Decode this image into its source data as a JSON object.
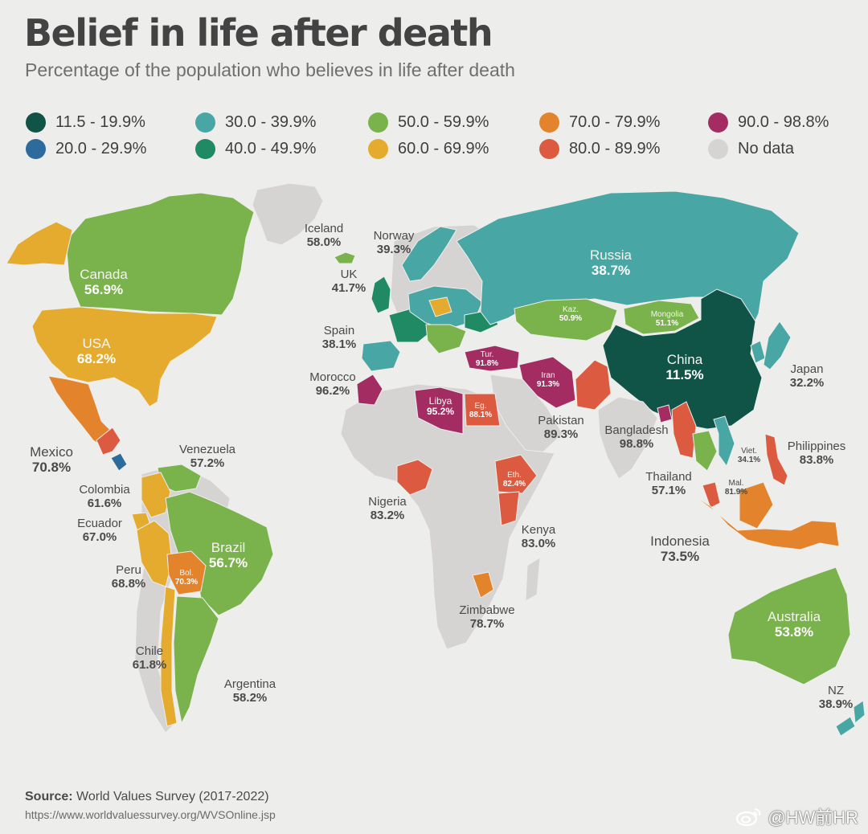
{
  "title": "Belief in life after death",
  "subtitle": "Percentage of the population who believes in life after death",
  "colors": {
    "b1": "#0f5447",
    "b2": "#2c6b9c",
    "b3": "#48a7a5",
    "b4": "#1f8a64",
    "b5": "#7ab24b",
    "b6": "#e5ab2f",
    "b7": "#e3832c",
    "b8": "#dc5a3f",
    "b9": "#a32d63",
    "nodata": "#d6d3d3"
  },
  "legend": [
    {
      "label": "11.5 - 19.9%",
      "color": "#0f5447"
    },
    {
      "label": "20.0 - 29.9%",
      "color": "#2c6b9c"
    },
    {
      "label": "30.0 - 39.9%",
      "color": "#48a7a5"
    },
    {
      "label": "40.0 - 49.9%",
      "color": "#1f8a64"
    },
    {
      "label": "50.0 - 59.9%",
      "color": "#7ab24b"
    },
    {
      "label": "60.0 - 69.9%",
      "color": "#e5ab2f"
    },
    {
      "label": "70.0 - 79.9%",
      "color": "#e3832c"
    },
    {
      "label": "80.0 - 89.9%",
      "color": "#dc5a3f"
    },
    {
      "label": "90.0 - 98.8%",
      "color": "#a32d63"
    },
    {
      "label": "No data",
      "color": "#d6d3d3"
    }
  ],
  "countries": [
    {
      "name": "Canada",
      "value": "56.9%"
    },
    {
      "name": "USA",
      "value": "68.2%"
    },
    {
      "name": "Mexico",
      "value": "70.8%"
    },
    {
      "name": "Venezuela",
      "value": "57.2%"
    },
    {
      "name": "Colombia",
      "value": "61.6%"
    },
    {
      "name": "Ecuador",
      "value": "67.0%"
    },
    {
      "name": "Peru",
      "value": "68.8%"
    },
    {
      "name": "Brazil",
      "value": "56.7%"
    },
    {
      "name": "Bol.",
      "value": "70.3%"
    },
    {
      "name": "Chile",
      "value": "61.8%"
    },
    {
      "name": "Argentina",
      "value": "58.2%"
    },
    {
      "name": "Iceland",
      "value": "58.0%"
    },
    {
      "name": "Norway",
      "value": "39.3%"
    },
    {
      "name": "UK",
      "value": "41.7%"
    },
    {
      "name": "Spain",
      "value": "38.1%"
    },
    {
      "name": "Morocco",
      "value": "96.2%"
    },
    {
      "name": "Libya",
      "value": "95.2%"
    },
    {
      "name": "Eg.",
      "value": "88.1%"
    },
    {
      "name": "Tur.",
      "value": "91.8%"
    },
    {
      "name": "Iran",
      "value": "91.3%"
    },
    {
      "name": "Nigeria",
      "value": "83.2%"
    },
    {
      "name": "Eth.",
      "value": "82.4%"
    },
    {
      "name": "Kenya",
      "value": "83.0%"
    },
    {
      "name": "Zimbabwe",
      "value": "78.7%"
    },
    {
      "name": "Russia",
      "value": "38.7%"
    },
    {
      "name": "Kaz.",
      "value": "50.9%"
    },
    {
      "name": "Mongolia",
      "value": "51.1%"
    },
    {
      "name": "China",
      "value": "11.5%"
    },
    {
      "name": "Japan",
      "value": "32.2%"
    },
    {
      "name": "Pakistan",
      "value": "89.3%"
    },
    {
      "name": "Bangladesh",
      "value": "98.8%"
    },
    {
      "name": "Viet.",
      "value": "34.1%"
    },
    {
      "name": "Philippines",
      "value": "83.8%"
    },
    {
      "name": "Thailand",
      "value": "57.1%"
    },
    {
      "name": "Mal.",
      "value": "81.9%"
    },
    {
      "name": "Indonesia",
      "value": "73.5%"
    },
    {
      "name": "Australia",
      "value": "53.8%"
    },
    {
      "name": "NZ",
      "value": "38.9%"
    }
  ],
  "source": {
    "label": "Source:",
    "text": "World Values Survey (2017-2022)"
  },
  "url": "https://www.worldvaluessurvey.org/WVSOnline.jsp",
  "watermark": "@HW前HR"
}
